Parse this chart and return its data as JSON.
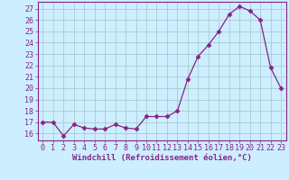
{
  "x": [
    0,
    1,
    2,
    3,
    4,
    5,
    6,
    7,
    8,
    9,
    10,
    11,
    12,
    13,
    14,
    15,
    16,
    17,
    18,
    19,
    20,
    21,
    22,
    23
  ],
  "y": [
    17.0,
    17.0,
    15.8,
    16.8,
    16.5,
    16.4,
    16.4,
    16.8,
    16.5,
    16.4,
    17.5,
    17.5,
    17.5,
    18.0,
    20.8,
    22.8,
    23.8,
    25.0,
    26.5,
    27.2,
    26.8,
    26.0,
    21.8,
    20.0
  ],
  "line_color": "#882288",
  "marker": "D",
  "marker_size": 2.5,
  "bg_color": "#cceeff",
  "grid_color": "#aacccc",
  "ylabel_ticks": [
    16,
    17,
    18,
    19,
    20,
    21,
    22,
    23,
    24,
    25,
    26,
    27
  ],
  "ylim": [
    15.4,
    27.6
  ],
  "xlim": [
    -0.5,
    23.5
  ],
  "xlabel": "Windchill (Refroidissement éolien,°C)",
  "xlabel_color": "#882288",
  "tick_color": "#882288",
  "spine_color": "#882288",
  "label_fontsize": 6.5,
  "tick_fontsize": 6.0
}
